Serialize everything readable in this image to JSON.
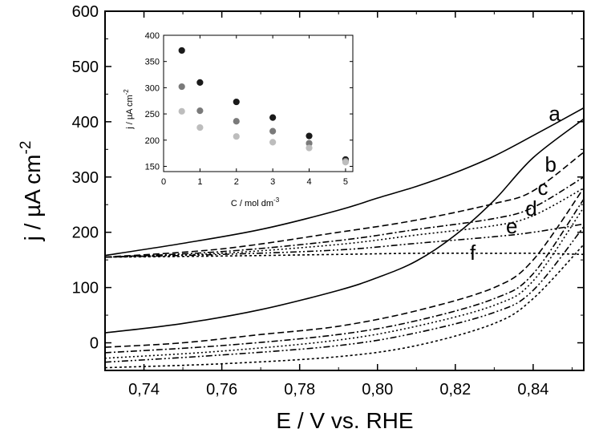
{
  "chart_data": [
    {
      "type": "line",
      "xlabel": "E / V vs. RHE",
      "ylabel": "j / µA cm",
      "ylabel_exp": "-2",
      "xlim": [
        0.73,
        0.853
      ],
      "ylim": [
        -50,
        600
      ],
      "xticks": [
        "0,74",
        "0,76",
        "0,78",
        "0,80",
        "0,82",
        "0,84"
      ],
      "xtick_values": [
        0.74,
        0.76,
        0.78,
        0.8,
        0.82,
        0.84
      ],
      "yticks": [
        "0",
        "100",
        "200",
        "300",
        "400",
        "500",
        "600"
      ],
      "ytick_values": [
        0,
        100,
        200,
        300,
        400,
        500,
        600
      ],
      "grid": false,
      "curve_labels": [
        "a",
        "b",
        "c",
        "d",
        "e",
        "f"
      ],
      "series": [
        {
          "name": "a",
          "dash": "solid",
          "upper": [
            [
              0.73,
              158
            ],
            [
              0.75,
              180
            ],
            [
              0.77,
              205
            ],
            [
              0.79,
              240
            ],
            [
              0.8,
              262
            ],
            [
              0.81,
              283
            ],
            [
              0.82,
              308
            ],
            [
              0.83,
              338
            ],
            [
              0.84,
              375
            ],
            [
              0.853,
              425
            ]
          ],
          "lower": [
            [
              0.73,
              18
            ],
            [
              0.75,
              35
            ],
            [
              0.77,
              60
            ],
            [
              0.79,
              95
            ],
            [
              0.8,
              118
            ],
            [
              0.81,
              148
            ],
            [
              0.82,
              195
            ],
            [
              0.83,
              258
            ],
            [
              0.84,
              335
            ],
            [
              0.853,
              405
            ]
          ]
        },
        {
          "name": "b",
          "dash": "dashed",
          "upper": [
            [
              0.73,
              155
            ],
            [
              0.76,
              170
            ],
            [
              0.79,
              200
            ],
            [
              0.81,
              222
            ],
            [
              0.83,
              252
            ],
            [
              0.84,
              275
            ],
            [
              0.853,
              345
            ]
          ],
          "lower": [
            [
              0.73,
              -8
            ],
            [
              0.75,
              0
            ],
            [
              0.77,
              15
            ],
            [
              0.79,
              30
            ],
            [
              0.81,
              58
            ],
            [
              0.83,
              100
            ],
            [
              0.84,
              150
            ],
            [
              0.853,
              280
            ]
          ]
        },
        {
          "name": "c",
          "dash": "dash-dot",
          "upper": [
            [
              0.73,
              155
            ],
            [
              0.76,
              165
            ],
            [
              0.79,
              185
            ],
            [
              0.81,
              205
            ],
            [
              0.83,
              225
            ],
            [
              0.84,
              245
            ],
            [
              0.853,
              300
            ]
          ],
          "lower": [
            [
              0.73,
              -18
            ],
            [
              0.76,
              -5
            ],
            [
              0.79,
              15
            ],
            [
              0.81,
              40
            ],
            [
              0.83,
              80
            ],
            [
              0.84,
              125
            ],
            [
              0.853,
              260
            ]
          ]
        },
        {
          "name": "d",
          "dash": "dotted",
          "upper": [
            [
              0.73,
              155
            ],
            [
              0.76,
              162
            ],
            [
              0.79,
              178
            ],
            [
              0.81,
              195
            ],
            [
              0.83,
              212
            ],
            [
              0.84,
              230
            ],
            [
              0.853,
              280
            ]
          ],
          "lower": [
            [
              0.73,
              -28
            ],
            [
              0.76,
              -15
            ],
            [
              0.79,
              5
            ],
            [
              0.81,
              30
            ],
            [
              0.83,
              68
            ],
            [
              0.84,
              112
            ],
            [
              0.853,
              245
            ]
          ]
        },
        {
          "name": "e",
          "dash": "dash-dot-dot",
          "upper": [
            [
              0.73,
              155
            ],
            [
              0.76,
              160
            ],
            [
              0.79,
              168
            ],
            [
              0.81,
              180
            ],
            [
              0.83,
              192
            ],
            [
              0.84,
              200
            ],
            [
              0.853,
              215
            ]
          ],
          "lower": [
            [
              0.73,
              -35
            ],
            [
              0.76,
              -22
            ],
            [
              0.79,
              -5
            ],
            [
              0.81,
              18
            ],
            [
              0.83,
              55
            ],
            [
              0.84,
              95
            ],
            [
              0.853,
              210
            ]
          ]
        },
        {
          "name": "f",
          "dash": "short-dot",
          "upper": [
            [
              0.73,
              155
            ],
            [
              0.76,
              157
            ],
            [
              0.79,
              160
            ],
            [
              0.81,
              162
            ],
            [
              0.83,
              162
            ],
            [
              0.84,
              162
            ],
            [
              0.853,
              160
            ]
          ],
          "lower": [
            [
              0.73,
              -45
            ],
            [
              0.76,
              -38
            ],
            [
              0.79,
              -25
            ],
            [
              0.81,
              -5
            ],
            [
              0.83,
              35
            ],
            [
              0.84,
              80
            ],
            [
              0.853,
              178
            ]
          ]
        }
      ]
    },
    {
      "type": "scatter",
      "xlabel": "C / mol dm",
      "xlabel_exp": "-3",
      "ylabel": "j / µA cm",
      "ylabel_exp": "-2",
      "xlim": [
        0,
        5.2
      ],
      "ylim": [
        140,
        400
      ],
      "xticks": [
        "0",
        "1",
        "2",
        "3",
        "4",
        "5"
      ],
      "xtick_values": [
        0,
        1,
        2,
        3,
        4,
        5
      ],
      "yticks": [
        "150",
        "200",
        "250",
        "300",
        "350",
        "400"
      ],
      "ytick_values": [
        150,
        200,
        250,
        300,
        350,
        400
      ],
      "grid": false,
      "series": [
        {
          "color": "#1a1a1a",
          "points": [
            [
              0.5,
              371
            ],
            [
              1,
              310
            ],
            [
              2,
              273
            ],
            [
              3,
              243
            ],
            [
              4,
              208
            ],
            [
              5,
              163
            ]
          ]
        },
        {
          "color": "#7a7a7a",
          "points": [
            [
              0.5,
              302
            ],
            [
              1,
              256
            ],
            [
              2,
              236
            ],
            [
              3,
              217
            ],
            [
              4,
              194
            ],
            [
              5,
              160
            ]
          ]
        },
        {
          "color": "#bdbdbd",
          "points": [
            [
              0.5,
              255
            ],
            [
              1,
              224
            ],
            [
              2,
              207
            ],
            [
              3,
              196
            ],
            [
              4,
              185
            ],
            [
              5,
              158
            ]
          ]
        }
      ]
    }
  ]
}
